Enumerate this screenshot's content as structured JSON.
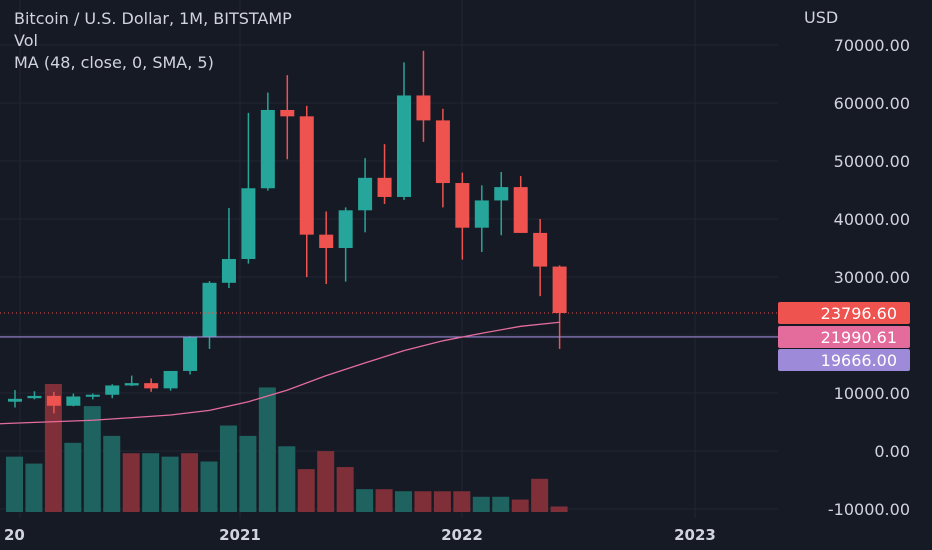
{
  "legend": {
    "title": "Bitcoin / U.S. Dollar, 1M, BITSTAMP",
    "vol": "Vol",
    "ma": "MA (48, close, 0, SMA, 5)"
  },
  "colors": {
    "up": "#26a69a",
    "down": "#ef5350",
    "vol_up": "#1f6360",
    "vol_down": "#7e2f37",
    "ma_line": "#e46c9c",
    "h_line": "#9d8ad8",
    "background": "#161a25",
    "grid": "#222632"
  },
  "chart_data": {
    "type": "candlestick",
    "currency": "USD",
    "y_ticks": [
      "70000.00",
      "60000.00",
      "50000.00",
      "40000.00",
      "30000.00",
      "20000.00",
      "10000.00",
      "0.00",
      "-10000.00"
    ],
    "x_ticks": [
      "20",
      "2021",
      "2022",
      "2023"
    ],
    "candles": [
      {
        "o": 8500,
        "h": 10500,
        "l": 7500,
        "c": 9000
      },
      {
        "o": 9100,
        "h": 10300,
        "l": 8900,
        "c": 9500
      },
      {
        "o": 9500,
        "h": 10200,
        "l": 6500,
        "c": 7800
      },
      {
        "o": 7800,
        "h": 9900,
        "l": 7700,
        "c": 9400
      },
      {
        "o": 9400,
        "h": 9900,
        "l": 8900,
        "c": 9700
      },
      {
        "o": 9700,
        "h": 11500,
        "l": 9100,
        "c": 11300
      },
      {
        "o": 11300,
        "h": 13000,
        "l": 11200,
        "c": 11700
      },
      {
        "o": 11700,
        "h": 12500,
        "l": 10200,
        "c": 10800
      },
      {
        "o": 10800,
        "h": 13800,
        "l": 10400,
        "c": 13800
      },
      {
        "o": 13800,
        "h": 19800,
        "l": 13200,
        "c": 19700
      },
      {
        "o": 19700,
        "h": 29300,
        "l": 17600,
        "c": 29000
      },
      {
        "o": 29000,
        "h": 41900,
        "l": 28100,
        "c": 33100
      },
      {
        "o": 33100,
        "h": 58300,
        "l": 32300,
        "c": 45300
      },
      {
        "o": 45300,
        "h": 61800,
        "l": 44900,
        "c": 58800
      },
      {
        "o": 58800,
        "h": 64800,
        "l": 50300,
        "c": 57700
      },
      {
        "o": 57700,
        "h": 59500,
        "l": 30000,
        "c": 37300
      },
      {
        "o": 37300,
        "h": 41300,
        "l": 28800,
        "c": 35000
      },
      {
        "o": 35000,
        "h": 42000,
        "l": 29200,
        "c": 41500
      },
      {
        "o": 41500,
        "h": 50500,
        "l": 37700,
        "c": 47100
      },
      {
        "o": 47100,
        "h": 52900,
        "l": 42600,
        "c": 43800
      },
      {
        "o": 43800,
        "h": 67000,
        "l": 43300,
        "c": 61300
      },
      {
        "o": 61300,
        "h": 69000,
        "l": 53300,
        "c": 57000
      },
      {
        "o": 57000,
        "h": 59000,
        "l": 42000,
        "c": 46200
      },
      {
        "o": 46200,
        "h": 48000,
        "l": 33000,
        "c": 38500
      },
      {
        "o": 38500,
        "h": 45800,
        "l": 34300,
        "c": 43200
      },
      {
        "o": 43200,
        "h": 48100,
        "l": 37200,
        "c": 45500
      },
      {
        "o": 45500,
        "h": 47400,
        "l": 37700,
        "c": 37600
      },
      {
        "o": 37600,
        "h": 40000,
        "l": 26700,
        "c": 31800
      },
      {
        "o": 31800,
        "h": 32000,
        "l": 17600,
        "c": 23796.6
      }
    ],
    "volume_bars": [
      {
        "v": 8000,
        "up": true
      },
      {
        "v": 7000,
        "up": true
      },
      {
        "v": 18500,
        "up": false
      },
      {
        "v": 10000,
        "up": true
      },
      {
        "v": 15300,
        "up": true
      },
      {
        "v": 11000,
        "up": true
      },
      {
        "v": 8500,
        "up": false
      },
      {
        "v": 8500,
        "up": true
      },
      {
        "v": 8000,
        "up": true
      },
      {
        "v": 8500,
        "up": false
      },
      {
        "v": 7300,
        "up": true
      },
      {
        "v": 12500,
        "up": true
      },
      {
        "v": 11000,
        "up": true
      },
      {
        "v": 18000,
        "up": true
      },
      {
        "v": 9500,
        "up": true
      },
      {
        "v": 6200,
        "up": false
      },
      {
        "v": 8800,
        "up": false
      },
      {
        "v": 6500,
        "up": false
      },
      {
        "v": 3300,
        "up": true
      },
      {
        "v": 3300,
        "up": false
      },
      {
        "v": 3000,
        "up": true
      },
      {
        "v": 3000,
        "up": false
      },
      {
        "v": 3000,
        "up": false
      },
      {
        "v": 3000,
        "up": false
      },
      {
        "v": 2200,
        "up": true
      },
      {
        "v": 2200,
        "up": true
      },
      {
        "v": 1800,
        "up": false
      },
      {
        "v": 4800,
        "up": false
      },
      {
        "v": 800,
        "up": false
      }
    ],
    "ma": [
      {
        "i": 0,
        "v": 4800
      },
      {
        "i": 4,
        "v": 5300
      },
      {
        "i": 8,
        "v": 6200
      },
      {
        "i": 10,
        "v": 7000
      },
      {
        "i": 12,
        "v": 8500
      },
      {
        "i": 14,
        "v": 10500
      },
      {
        "i": 16,
        "v": 13000
      },
      {
        "i": 18,
        "v": 15200
      },
      {
        "i": 20,
        "v": 17300
      },
      {
        "i": 22,
        "v": 19000
      },
      {
        "i": 24,
        "v": 20300
      },
      {
        "i": 26,
        "v": 21500
      },
      {
        "i": 28,
        "v": 22200
      }
    ],
    "h_line_value": 19666.0,
    "badges": [
      {
        "label": "23796.60",
        "value": 23796.6,
        "color": "#ef5350"
      },
      {
        "label": "21990.61",
        "value": 21990.61,
        "color": "#e46c9c"
      },
      {
        "label": "19666.00",
        "value": 19666.0,
        "color": "#9d8ad8"
      }
    ]
  }
}
